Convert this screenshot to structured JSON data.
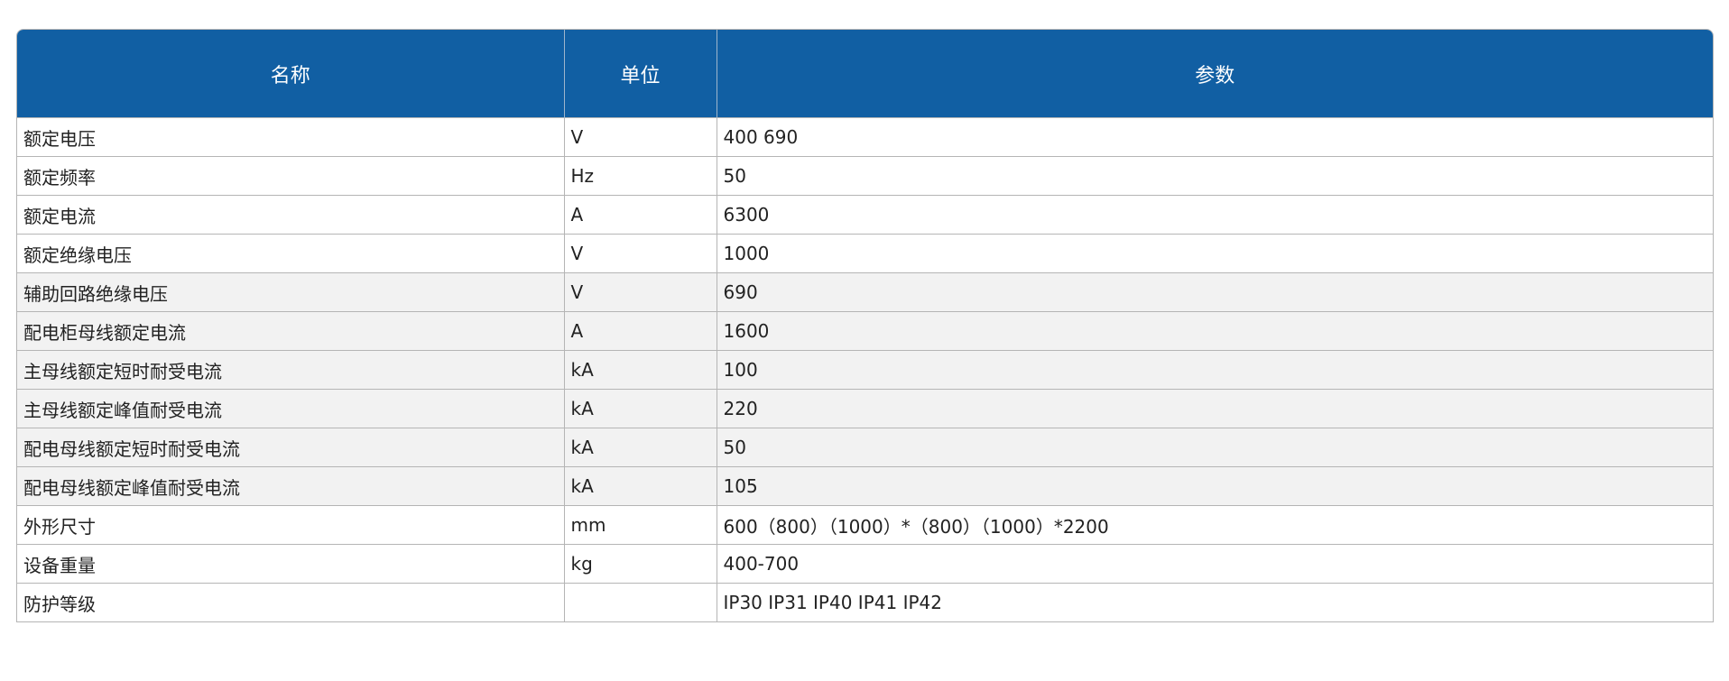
{
  "table": {
    "headers": [
      "名称",
      "单位",
      "参数"
    ],
    "header_color": "#115fa3",
    "rows": [
      {
        "name": "额定电压",
        "unit": "V",
        "value": "400 690"
      },
      {
        "name": "额定频率",
        "unit": "Hz",
        "value": "50"
      },
      {
        "name": "额定电流",
        "unit": "A",
        "value": "6300"
      },
      {
        "name": "额定绝缘电压",
        "unit": "V",
        "value": "1000"
      },
      {
        "name": "辅助回路绝缘电压",
        "unit": "V",
        "value": "690"
      },
      {
        "name": "配电柜母线额定电流",
        "unit": "A",
        "value": "1600"
      },
      {
        "name": "主母线额定短时耐受电流",
        "unit": "kA",
        "value": "100"
      },
      {
        "name": "主母线额定峰值耐受电流",
        "unit": "kA",
        "value": "220"
      },
      {
        "name": "配电母线额定短时耐受电流",
        "unit": "kA",
        "value": "50"
      },
      {
        "name": "配电母线额定峰值耐受电流",
        "unit": "kA",
        "value": "105"
      },
      {
        "name": "外形尺寸",
        "unit": "mm",
        "value": "600（800）（1000）*（800）（1000）*2200"
      },
      {
        "name": "设备重量",
        "unit": "kg",
        "value": "400-700"
      },
      {
        "name": "防护等级",
        "unit": "",
        "value": "IP30 IP31 IP40 IP41 IP42"
      }
    ]
  }
}
